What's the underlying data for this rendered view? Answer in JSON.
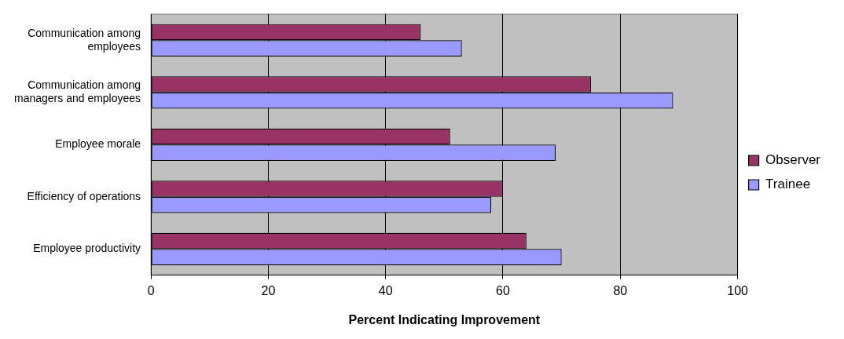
{
  "chart_data": {
    "type": "bar",
    "orientation": "horizontal",
    "xlabel": "Percent Indicating Improvement",
    "categories": [
      "Communication among employees",
      "Communication among managers and employees",
      "Employee morale",
      "Efficiency of operations",
      "Employee productivity"
    ],
    "series": [
      {
        "name": "Observer",
        "color": "#993366",
        "values": [
          46,
          75,
          51,
          60,
          64
        ]
      },
      {
        "name": "Trainee",
        "color": "#9999ff",
        "values": [
          53,
          89,
          69,
          58,
          70
        ]
      }
    ],
    "xlim": [
      0,
      100
    ],
    "xticks": [
      0,
      20,
      40,
      60,
      80,
      100
    ],
    "grid": "x",
    "legend": "right"
  }
}
